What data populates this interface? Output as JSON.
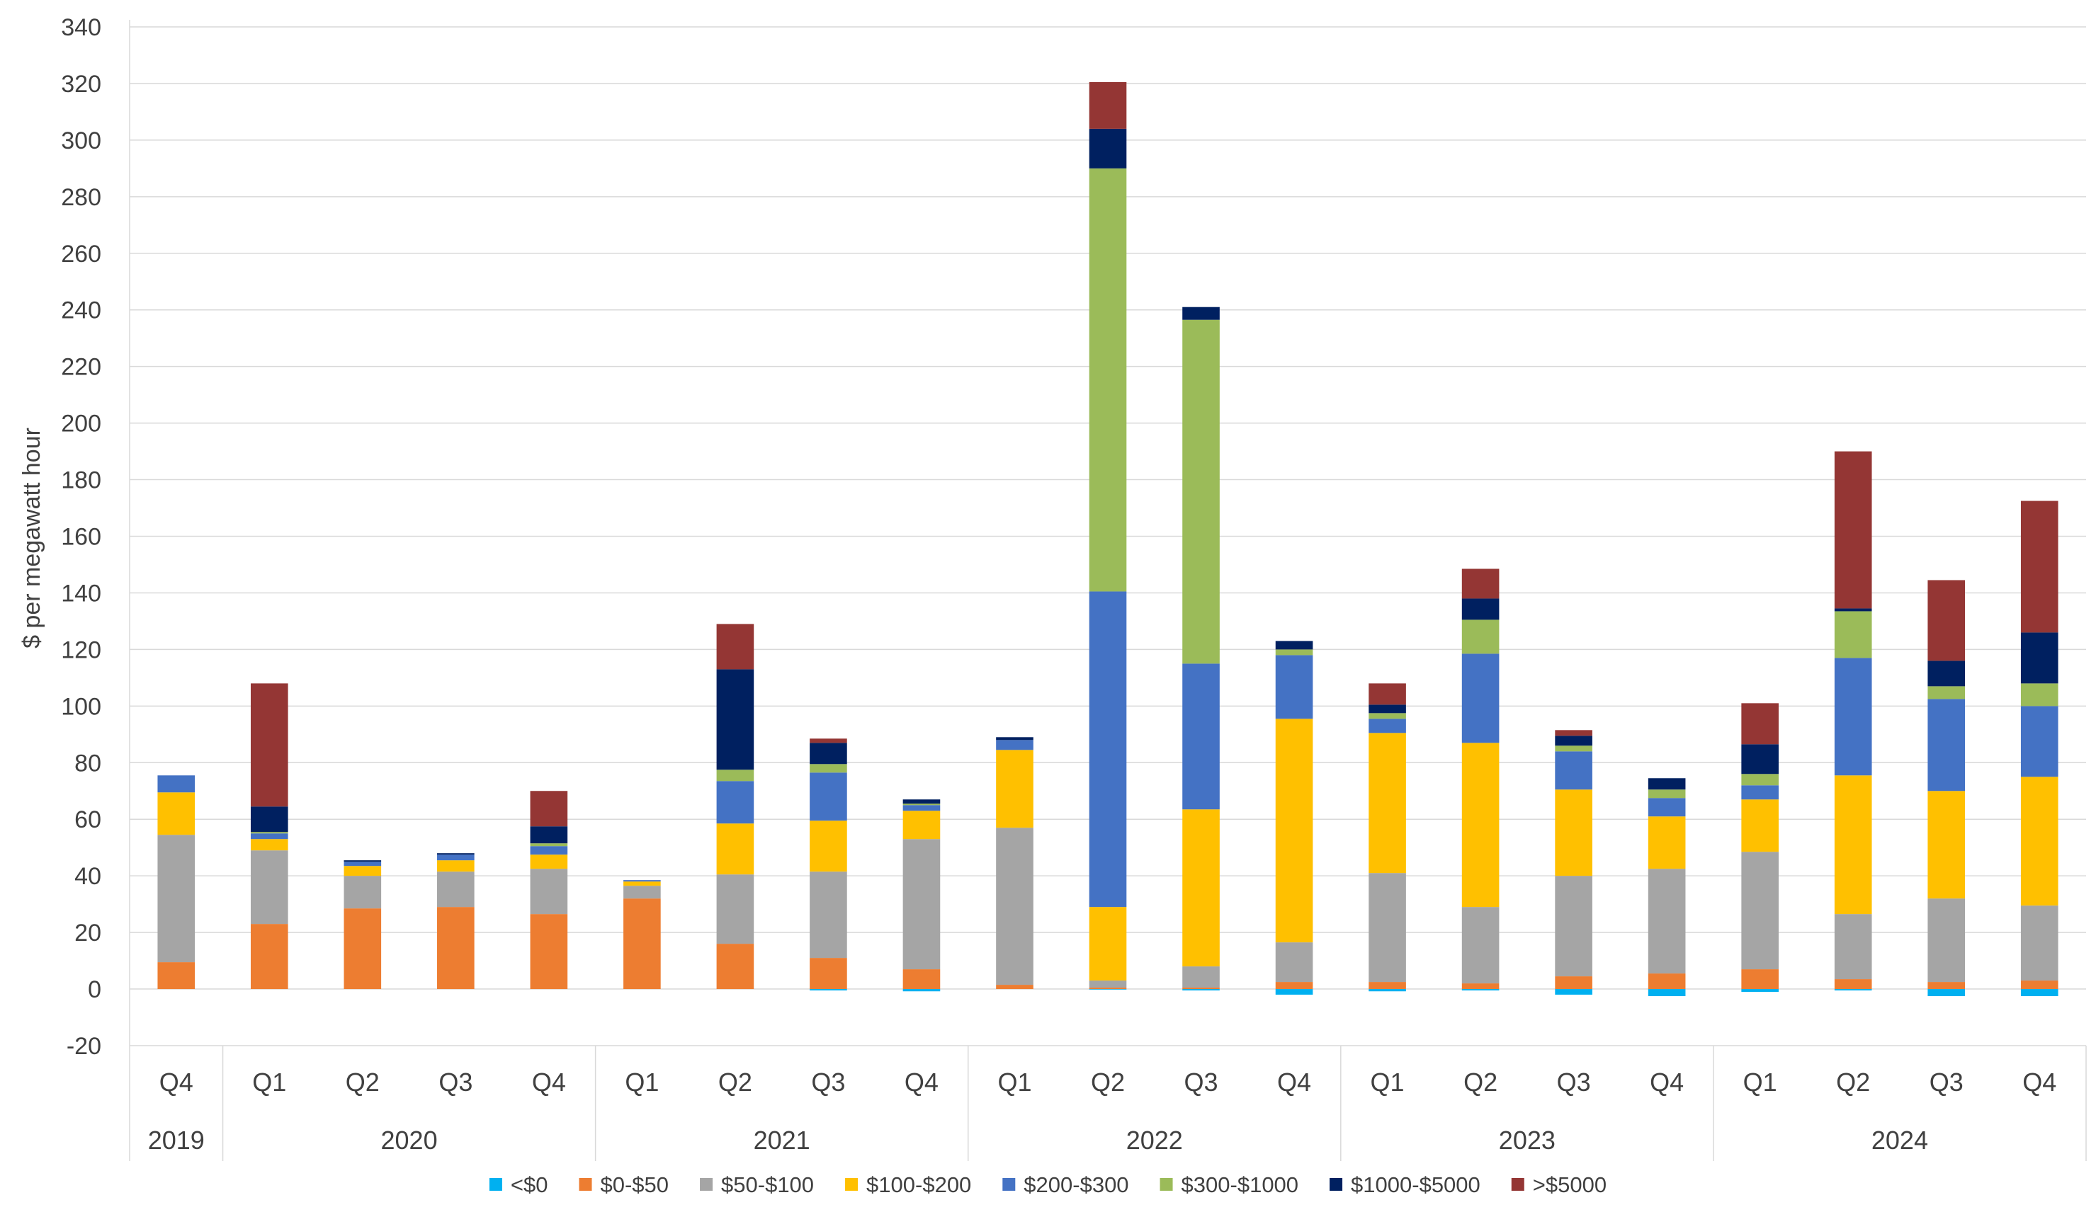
{
  "chart_data": {
    "type": "bar",
    "stacked": true,
    "title": "",
    "xlabel": "",
    "ylabel": "$ per megawatt hour",
    "ylim": [
      -20,
      340
    ],
    "ytick_step": 20,
    "grid": true,
    "legend_position": "bottom",
    "categories": [
      {
        "quarter": "Q4",
        "year": "2019"
      },
      {
        "quarter": "Q1",
        "year": "2020"
      },
      {
        "quarter": "Q2",
        "year": "2020"
      },
      {
        "quarter": "Q3",
        "year": "2020"
      },
      {
        "quarter": "Q4",
        "year": "2020"
      },
      {
        "quarter": "Q1",
        "year": "2021"
      },
      {
        "quarter": "Q2",
        "year": "2021"
      },
      {
        "quarter": "Q3",
        "year": "2021"
      },
      {
        "quarter": "Q4",
        "year": "2021"
      },
      {
        "quarter": "Q1",
        "year": "2022"
      },
      {
        "quarter": "Q2",
        "year": "2022"
      },
      {
        "quarter": "Q3",
        "year": "2022"
      },
      {
        "quarter": "Q4",
        "year": "2022"
      },
      {
        "quarter": "Q1",
        "year": "2023"
      },
      {
        "quarter": "Q2",
        "year": "2023"
      },
      {
        "quarter": "Q3",
        "year": "2023"
      },
      {
        "quarter": "Q4",
        "year": "2023"
      },
      {
        "quarter": "Q1",
        "year": "2024"
      },
      {
        "quarter": "Q2",
        "year": "2024"
      },
      {
        "quarter": "Q3",
        "year": "2024"
      },
      {
        "quarter": "Q4",
        "year": "2024"
      }
    ],
    "years": [
      {
        "label": "2019",
        "count": 1
      },
      {
        "label": "2020",
        "count": 4
      },
      {
        "label": "2021",
        "count": 4
      },
      {
        "label": "2022",
        "count": 4
      },
      {
        "label": "2023",
        "count": 4
      },
      {
        "label": "2024",
        "count": 4
      }
    ],
    "series": [
      {
        "name": "<$0",
        "color": "#00B0F0",
        "values": [
          0,
          0,
          0,
          0,
          0,
          0,
          0,
          -0.5,
          -0.8,
          0,
          -0.2,
          -0.5,
          -2,
          -0.8,
          -0.5,
          -2,
          -2.5,
          -1,
          -0.5,
          -2.5,
          -2.5
        ]
      },
      {
        "name": "$0-$50",
        "color": "#ED7D31",
        "values": [
          9.5,
          23,
          28.5,
          29,
          26.5,
          32,
          16,
          11,
          7,
          1.5,
          0.5,
          0.5,
          2.5,
          2.5,
          2,
          4.5,
          5.5,
          7,
          3.5,
          2.5,
          3
        ]
      },
      {
        "name": "$50-$100",
        "color": "#A5A5A5",
        "values": [
          45,
          26,
          11.5,
          12.5,
          16,
          4.5,
          24.5,
          30.5,
          46,
          55.5,
          2.5,
          7.5,
          14,
          38.5,
          27,
          35.5,
          37,
          41.5,
          23,
          29.5,
          26.5
        ]
      },
      {
        "name": "$100-$200",
        "color": "#FFC000",
        "values": [
          15,
          4,
          3.5,
          4,
          5,
          1.5,
          18,
          18,
          10,
          27.5,
          26,
          55.5,
          79,
          49.5,
          58,
          30.5,
          18.5,
          18.5,
          49,
          38,
          45.5
        ]
      },
      {
        "name": "$200-$300",
        "color": "#4472C4",
        "values": [
          6,
          2,
          1.5,
          2,
          3,
          0.5,
          15,
          17,
          2,
          3.5,
          111.5,
          51.5,
          22.5,
          5,
          31.5,
          13.5,
          6.5,
          5,
          41.5,
          32.5,
          25
        ]
      },
      {
        "name": "$300-$1000",
        "color": "#9BBB59",
        "values": [
          0,
          0.5,
          0,
          0,
          1,
          0,
          4,
          3,
          0.5,
          0,
          149.5,
          121.5,
          2,
          2,
          12,
          2,
          3,
          4,
          16.5,
          4.5,
          8
        ]
      },
      {
        "name": "$1000-$5000",
        "color": "#002060",
        "values": [
          0,
          9,
          0.5,
          0.5,
          6,
          0,
          35.5,
          7.5,
          1.5,
          1,
          14,
          4.5,
          3,
          3,
          7.5,
          3.5,
          4,
          10.5,
          1,
          9,
          18
        ]
      },
      {
        "name": ">$5000",
        "color": "#943634",
        "values": [
          0,
          43.5,
          0,
          0,
          12.5,
          0,
          16,
          1.5,
          0,
          0,
          16.5,
          0,
          0,
          7.5,
          10.5,
          2,
          0,
          14.5,
          55.5,
          28.5,
          46.5
        ]
      }
    ]
  }
}
